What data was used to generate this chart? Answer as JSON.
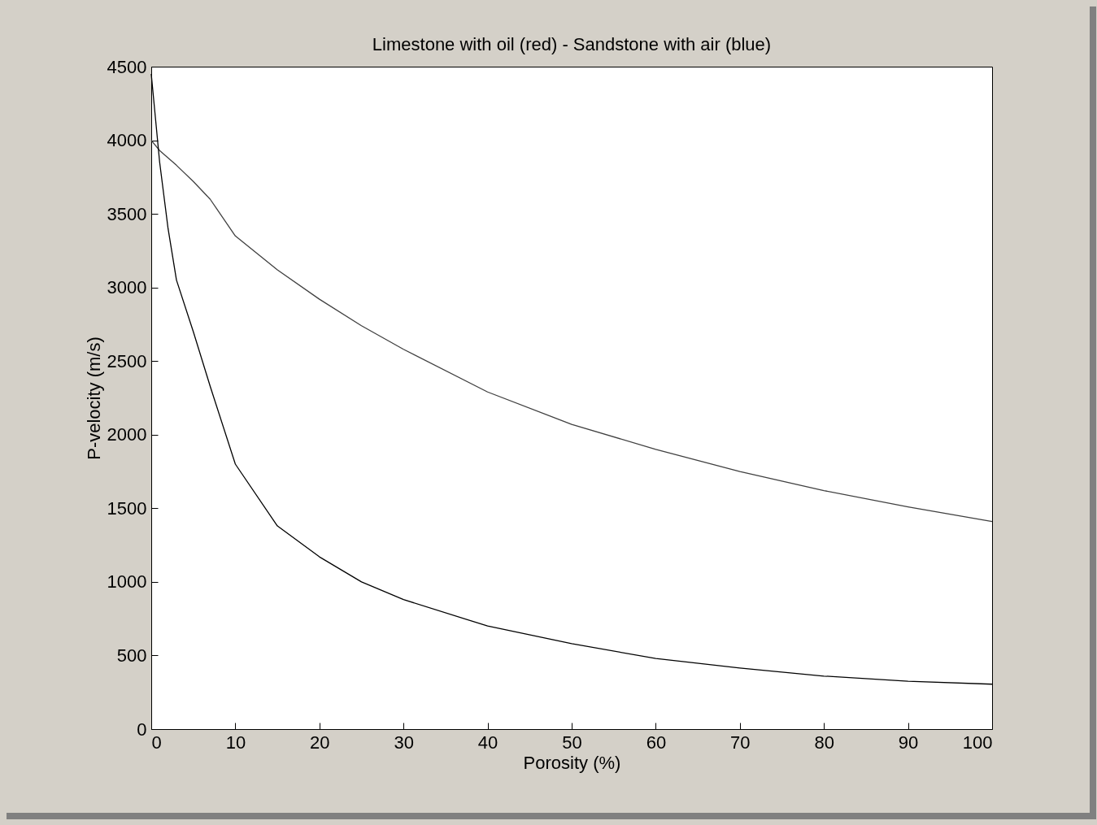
{
  "chart_data": {
    "type": "line",
    "title": "Limestone with oil (red) - Sandstone with air (blue)",
    "xlabel": "Porosity (%)",
    "ylabel": "P-velocity (m/s)",
    "x": [
      0,
      1,
      2,
      3,
      5,
      7,
      10,
      15,
      20,
      25,
      30,
      40,
      50,
      60,
      70,
      80,
      90,
      100
    ],
    "series": [
      {
        "color": "#404040",
        "values": [
          4000,
          3930,
          3880,
          3830,
          3720,
          3600,
          3350,
          3120,
          2920,
          2740,
          2580,
          2290,
          2070,
          1900,
          1750,
          1620,
          1510,
          1410
        ]
      },
      {
        "color": "#000000",
        "values": [
          4450,
          3850,
          3400,
          3050,
          2700,
          2330,
          1800,
          1380,
          1170,
          1000,
          880,
          700,
          580,
          480,
          415,
          360,
          325,
          305
        ]
      }
    ],
    "xlim": [
      0,
      100
    ],
    "xticks": [
      0,
      10,
      20,
      30,
      40,
      50,
      60,
      70,
      80,
      90,
      100
    ],
    "ylim": [
      0,
      4500
    ],
    "yticks": [
      0,
      500,
      1000,
      1500,
      2000,
      2500,
      3000,
      3500,
      4000,
      4500
    ],
    "grid": false,
    "marker": "none",
    "line_style": "solid"
  }
}
